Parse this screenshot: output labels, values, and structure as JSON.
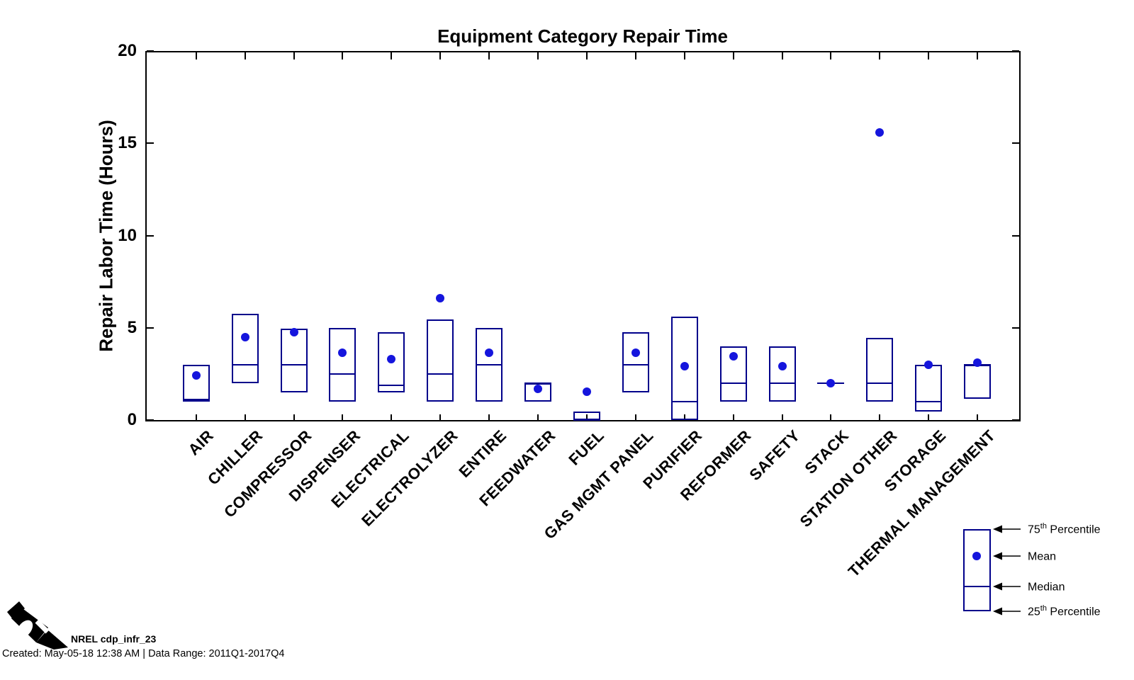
{
  "title": "Equipment Category Repair Time",
  "ylabel": "Repair Labor Time (Hours)",
  "colors": {
    "box": "#00008b",
    "mean": "#1515dd",
    "axis": "#000000"
  },
  "legend": {
    "items": [
      {
        "num": "75",
        "sup": "th",
        "rest": " Percentile"
      },
      {
        "num": "",
        "sup": "",
        "rest": "Mean"
      },
      {
        "num": "",
        "sup": "",
        "rest": "Median"
      },
      {
        "num": "25",
        "sup": "th",
        "rest": " Percentile"
      }
    ]
  },
  "footer": {
    "credit": "NREL cdp_infr_23",
    "created": "Created: May-05-18 12:38 AM | Data Range: 2011Q1-2017Q4"
  },
  "chart_data": {
    "type": "box",
    "title": "Equipment Category Repair Time",
    "xlabel": "",
    "ylabel": "Repair Labor Time (Hours)",
    "ylim": [
      0,
      20
    ],
    "yticks": [
      0,
      5,
      10,
      15,
      20
    ],
    "grid": false,
    "legend_position": "outside-bottom-right",
    "categories": [
      "AIR",
      "CHILLER",
      "COMPRESSOR",
      "DISPENSER",
      "ELECTRICAL",
      "ELECTROLYZER",
      "ENTIRE",
      "FEEDWATER",
      "FUEL",
      "GAS MGMT PANEL",
      "PURIFIER",
      "REFORMER",
      "SAFETY",
      "STACK",
      "STATION OTHER",
      "STORAGE",
      "THERMAL MANAGEMENT"
    ],
    "series": [
      {
        "name": "25th Percentile",
        "values": [
          1.0,
          2.0,
          1.5,
          1.0,
          1.5,
          1.0,
          1.0,
          1.0,
          0,
          1.5,
          0,
          1.0,
          1.0,
          2.0,
          1.0,
          0.45,
          1.15
        ]
      },
      {
        "name": "Median",
        "values": [
          1.1,
          3.0,
          3.0,
          2.5,
          1.9,
          2.5,
          3.0,
          2.0,
          0,
          3.0,
          1.0,
          2.0,
          2.0,
          2.0,
          2.0,
          1.0,
          3.0
        ]
      },
      {
        "name": "75th Percentile",
        "values": [
          3.0,
          5.75,
          4.95,
          5.0,
          4.75,
          5.45,
          5.0,
          2.0,
          0.45,
          4.75,
          5.6,
          4.0,
          4.0,
          2.0,
          4.45,
          3.0,
          3.0
        ]
      },
      {
        "name": "Mean",
        "values": [
          2.4,
          4.5,
          4.75,
          3.65,
          3.3,
          6.6,
          3.65,
          1.7,
          1.55,
          3.65,
          2.9,
          3.45,
          2.9,
          2.0,
          15.6,
          3.0,
          3.1
        ]
      }
    ]
  }
}
